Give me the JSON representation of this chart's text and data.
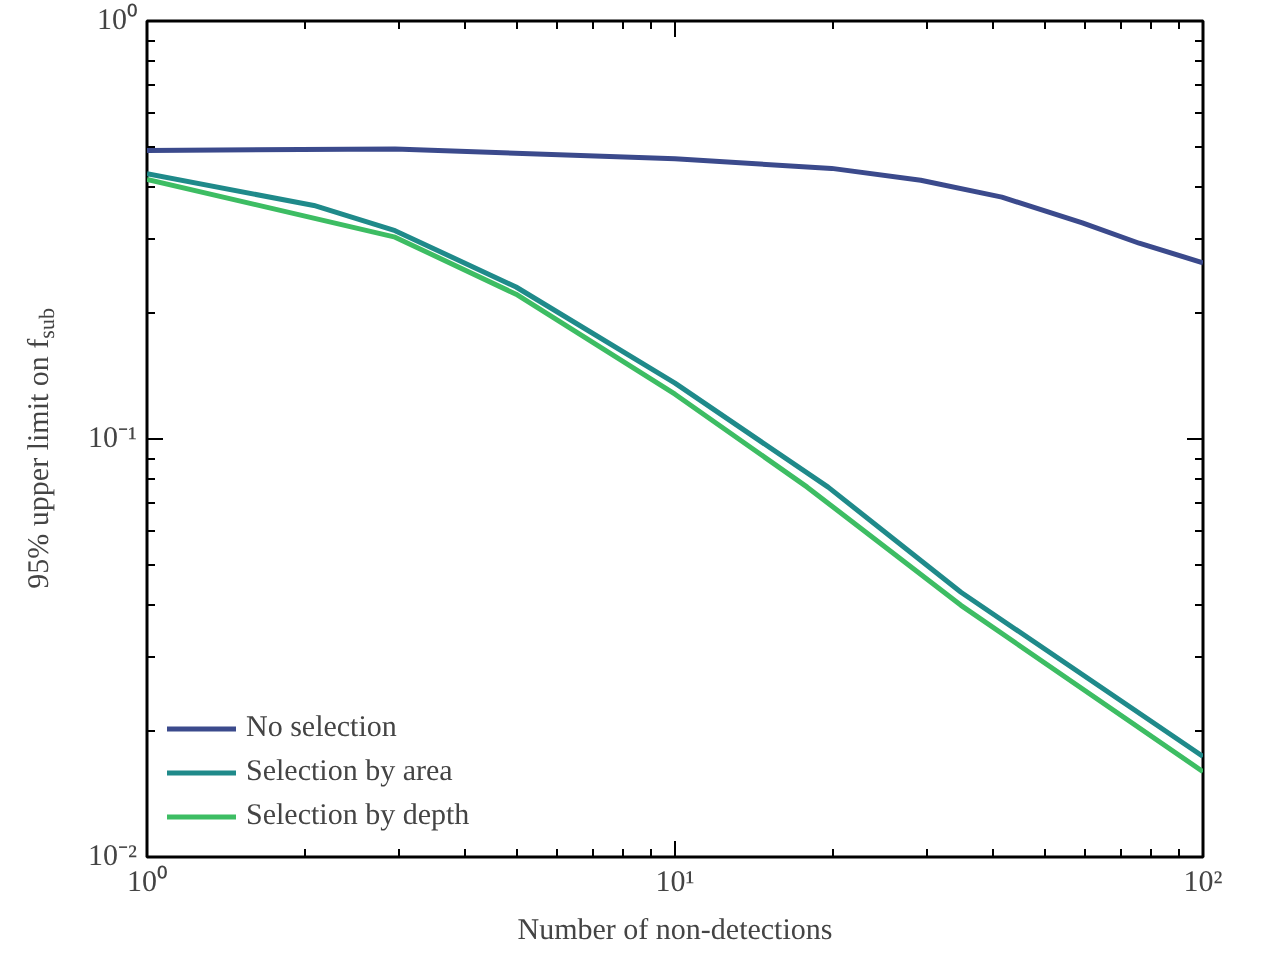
{
  "chart_data": {
    "type": "line",
    "xlabel": "Number of non-detections",
    "ylabel": "95% upper limit on f$_{sub}$",
    "log": "xy",
    "xlim": [
      1,
      100
    ],
    "ylim": [
      0.01,
      1
    ],
    "xticks": [
      {
        "value": 1,
        "label": "10⁰"
      },
      {
        "value": 10,
        "label": "10¹"
      },
      {
        "value": 100,
        "label": "10²"
      }
    ],
    "yticks": [
      {
        "value": 0.01,
        "label": "10⁻²"
      },
      {
        "value": 0.1,
        "label": "10⁻¹"
      },
      {
        "value": 1,
        "label": "10⁰"
      }
    ],
    "legend": "bottom left",
    "grid": false,
    "line_style": "solid",
    "series": [
      {
        "name": "No selection",
        "color": "#3b4a8c",
        "x": [
          1,
          2.95,
          10,
          19.8,
          29.2,
          41.6,
          59.1,
          75.7,
          100
        ],
        "values": [
          0.49,
          0.494,
          0.468,
          0.444,
          0.416,
          0.379,
          0.329,
          0.294,
          0.264
        ]
      },
      {
        "name": "Selection by area",
        "color": "#1f8a8a",
        "x": [
          1,
          2.07,
          2.95,
          5.0,
          10,
          19.5,
          34.8,
          100
        ],
        "values": [
          0.431,
          0.362,
          0.315,
          0.231,
          0.136,
          0.0767,
          0.043,
          0.0174
        ]
      },
      {
        "name": "Selection by depth",
        "color": "#3dbd63",
        "x": [
          1,
          2.95,
          5.0,
          10,
          17.8,
          34.8,
          100
        ],
        "values": [
          0.418,
          0.304,
          0.222,
          0.128,
          0.0767,
          0.04,
          0.016
        ]
      }
    ]
  }
}
